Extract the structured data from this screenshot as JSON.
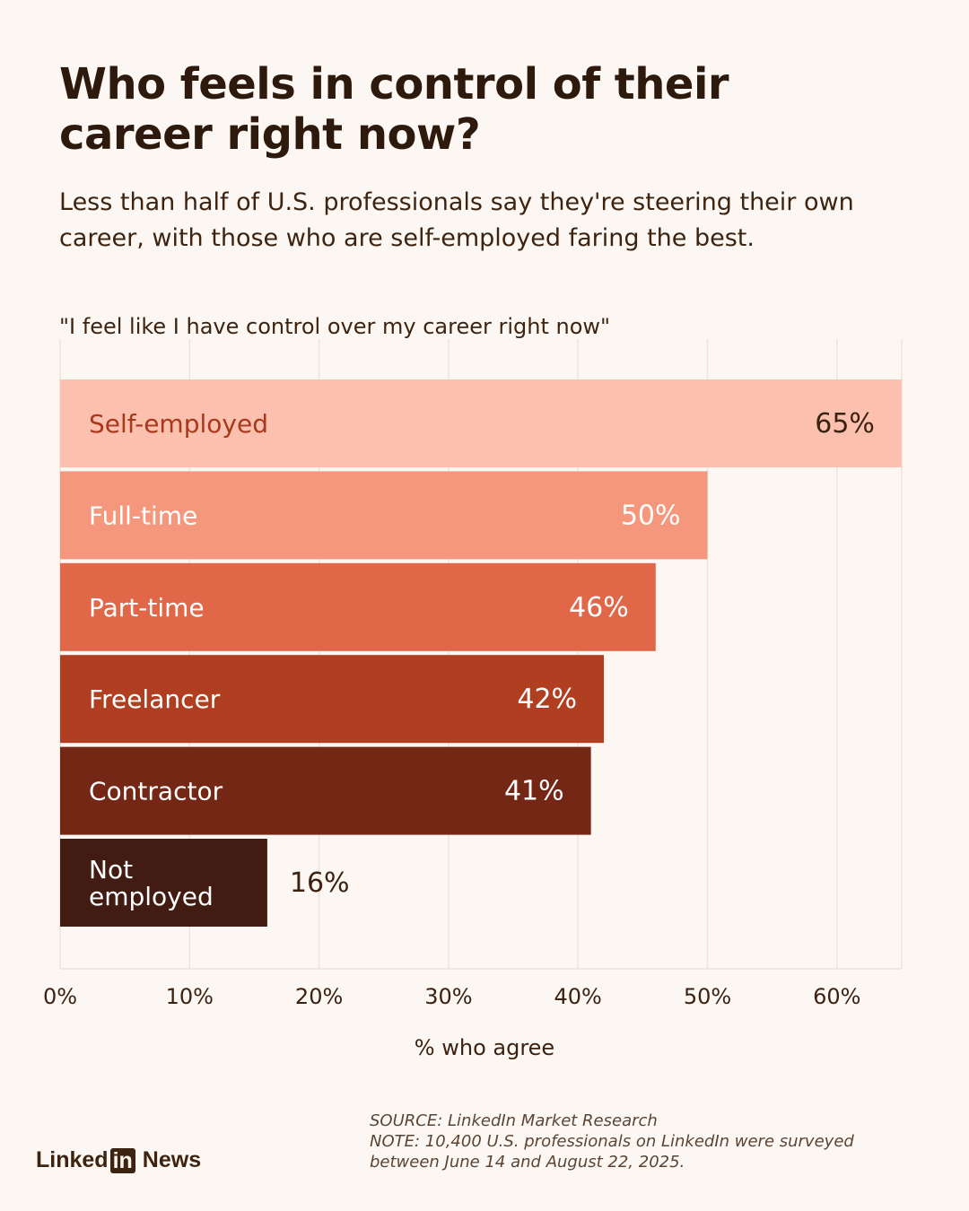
{
  "header": {
    "title_line1": "Who feels in control of their",
    "title_line2": "career right now?",
    "subtitle_line1": "Less than half of U.S. professionals say they're steering their own",
    "subtitle_line2": "career, with those who are self-employed faring the best."
  },
  "chart_data": {
    "type": "bar",
    "orientation": "horizontal",
    "title": "\"I feel like I have control over my career right now\"",
    "xlabel": "% who agree",
    "ylabel": "",
    "xlim": [
      0,
      65
    ],
    "ticks": [
      "0%",
      "10%",
      "20%",
      "30%",
      "40%",
      "50%",
      "60%"
    ],
    "tick_values": [
      0,
      10,
      20,
      30,
      40,
      50,
      60
    ],
    "grid": "vertical",
    "categories": [
      "Self-employed",
      "Full-time",
      "Part-time",
      "Freelancer",
      "Contractor",
      "Not employed"
    ],
    "category_lines": [
      [
        "Self-employed"
      ],
      [
        "Full-time"
      ],
      [
        "Part-time"
      ],
      [
        "Freelancer"
      ],
      [
        "Contractor"
      ],
      [
        "Not",
        "employed"
      ]
    ],
    "values": [
      65,
      50,
      46,
      42,
      41,
      16
    ],
    "value_labels": [
      "65%",
      "50%",
      "46%",
      "42%",
      "41%",
      "16%"
    ],
    "colors": [
      "#fcc0ae",
      "#f4977d",
      "#e06848",
      "#b03e21",
      "#742714",
      "#421c12"
    ],
    "label_colors": [
      "#a8391c",
      "#ffffff",
      "#ffffff",
      "#ffffff",
      "#ffffff",
      "#ffffff"
    ],
    "value_label_colors": [
      "#3b2210",
      "#ffffff",
      "#ffffff",
      "#ffffff",
      "#ffffff",
      "#3b2210"
    ]
  },
  "footer": {
    "source": "SOURCE: LinkedIn Market Research",
    "note_line1": "NOTE: 10,400 U.S. professionals on LinkedIn were surveyed",
    "note_line2": "between June 14 and August 22, 2025.",
    "logo_left": "Linked",
    "logo_box": "in",
    "logo_right": "News"
  }
}
